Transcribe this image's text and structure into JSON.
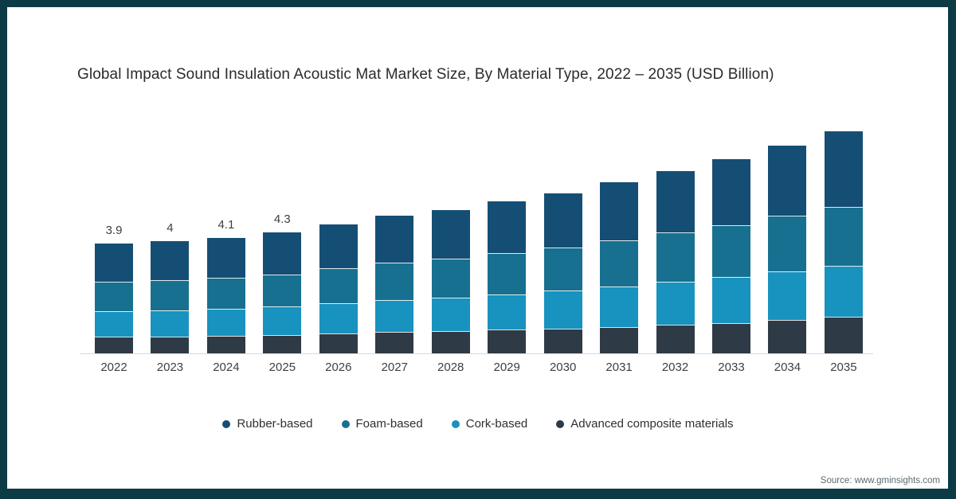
{
  "title": "Global Impact Sound Insulation Acoustic Mat Market Size, By Material Type, 2022 – 2035 (USD Billion)",
  "source_note": "Source: www.gminsights.com",
  "colors": {
    "frame": "#0c3b46",
    "axis_line": "#d9d9d9",
    "label_text": "#3f3f3f",
    "title_text": "#2b2b2b",
    "source_text": "#5c6b73"
  },
  "chart_data": {
    "type": "bar",
    "stacked": true,
    "title": "Global Impact Sound Insulation Acoustic Mat Market Size, By Material Type, 2022 – 2035 (USD Billion)",
    "unit": "USD Billion",
    "xlabel": "",
    "ylabel": "",
    "ylim": [
      0,
      8.5
    ],
    "grid": false,
    "legend_position": "bottom",
    "categories": [
      "2022",
      "2023",
      "2024",
      "2025",
      "2026",
      "2027",
      "2028",
      "2029",
      "2030",
      "2031",
      "2032",
      "2033",
      "2034",
      "2035"
    ],
    "series": [
      {
        "name": "Rubber-based",
        "color": "#154e74",
        "values": [
          1.35,
          1.38,
          1.41,
          1.48,
          1.57,
          1.66,
          1.74,
          1.84,
          1.92,
          2.06,
          2.19,
          2.33,
          2.49,
          2.68
        ]
      },
      {
        "name": "Foam-based",
        "color": "#17708f",
        "values": [
          1.05,
          1.08,
          1.11,
          1.16,
          1.25,
          1.33,
          1.38,
          1.46,
          1.55,
          1.65,
          1.76,
          1.86,
          1.99,
          2.1
        ]
      },
      {
        "name": "Cork-based",
        "color": "#1892be",
        "values": [
          0.9,
          0.93,
          0.95,
          1.0,
          1.08,
          1.15,
          1.19,
          1.26,
          1.35,
          1.44,
          1.53,
          1.62,
          1.73,
          1.82
        ]
      },
      {
        "name": "Advanced composite materials",
        "color": "#2e3a45",
        "values": [
          0.6,
          0.61,
          0.63,
          0.66,
          0.7,
          0.76,
          0.79,
          0.84,
          0.88,
          0.95,
          1.02,
          1.09,
          1.19,
          1.3
        ]
      }
    ],
    "totals": [
      3.9,
      4.0,
      4.1,
      4.3,
      4.6,
      4.9,
      5.1,
      5.4,
      5.7,
      6.1,
      6.5,
      6.9,
      7.4,
      7.9
    ],
    "total_labels": [
      "3.9",
      "4",
      "4.1",
      "4.3",
      "",
      "",
      "",
      "",
      "",
      "",
      "",
      "",
      "",
      ""
    ]
  }
}
